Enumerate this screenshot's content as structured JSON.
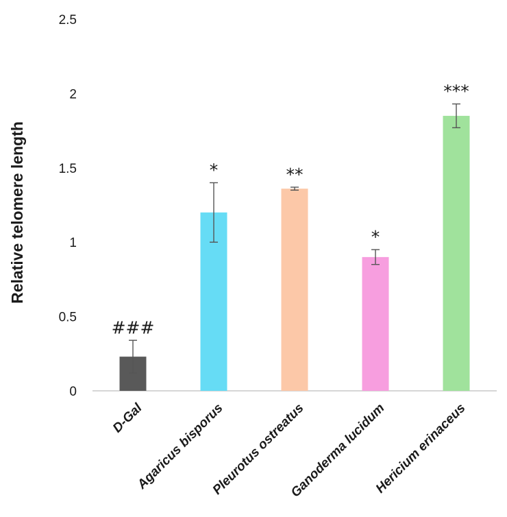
{
  "chart_data": {
    "type": "bar",
    "title": "",
    "xlabel": "",
    "ylabel": "Relative telomere length",
    "ylim": [
      0,
      2.5
    ],
    "yticks": [
      "0",
      "0.5",
      "1",
      "1.5",
      "2",
      "2.5"
    ],
    "ytick_values": [
      0,
      0.5,
      1,
      1.5,
      2,
      2.5
    ],
    "grid": false,
    "categories": [
      "D-Gal",
      "Agaricus bisporus",
      "Pleurotus ostreatus",
      "Ganoderma lucidum",
      "Hericium erinaceus"
    ],
    "values": [
      0.23,
      1.2,
      1.36,
      0.9,
      1.85
    ],
    "errors": [
      0.11,
      0.2,
      0.01,
      0.05,
      0.08
    ],
    "annotations": [
      "###",
      "*",
      "**",
      "*",
      "***"
    ],
    "colors": [
      "#595959",
      "#66dcf5",
      "#fcc8a8",
      "#f79edf",
      "#a0e29c"
    ]
  }
}
